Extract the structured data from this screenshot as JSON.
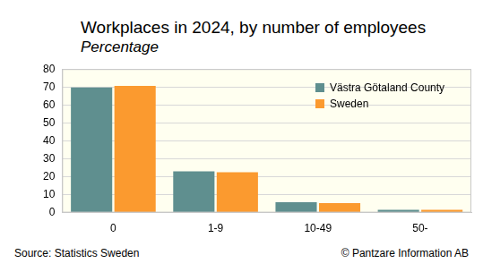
{
  "chart_data": {
    "type": "bar",
    "title": "Workplaces in 2024, by number of employees",
    "subtitle": "Percentage",
    "annotations": [
      "Source: Statistics Sweden",
      "© Pantzare Information AB"
    ],
    "categories": [
      "0",
      "1-9",
      "10-49",
      "50-"
    ],
    "series": [
      {
        "name": "Västra Götaland County",
        "color": "#5f8f8f",
        "values": [
          69.7,
          23.0,
          5.8,
          1.5
        ]
      },
      {
        "name": "Sweden",
        "color": "#fb9a2f",
        "values": [
          70.6,
          22.5,
          5.3,
          1.6
        ]
      }
    ],
    "ylim": [
      0,
      80
    ],
    "yticks": [
      0,
      10,
      20,
      30,
      40,
      50,
      60,
      70,
      80
    ],
    "grid": true,
    "legend": "upper right",
    "data_labels": false
  }
}
